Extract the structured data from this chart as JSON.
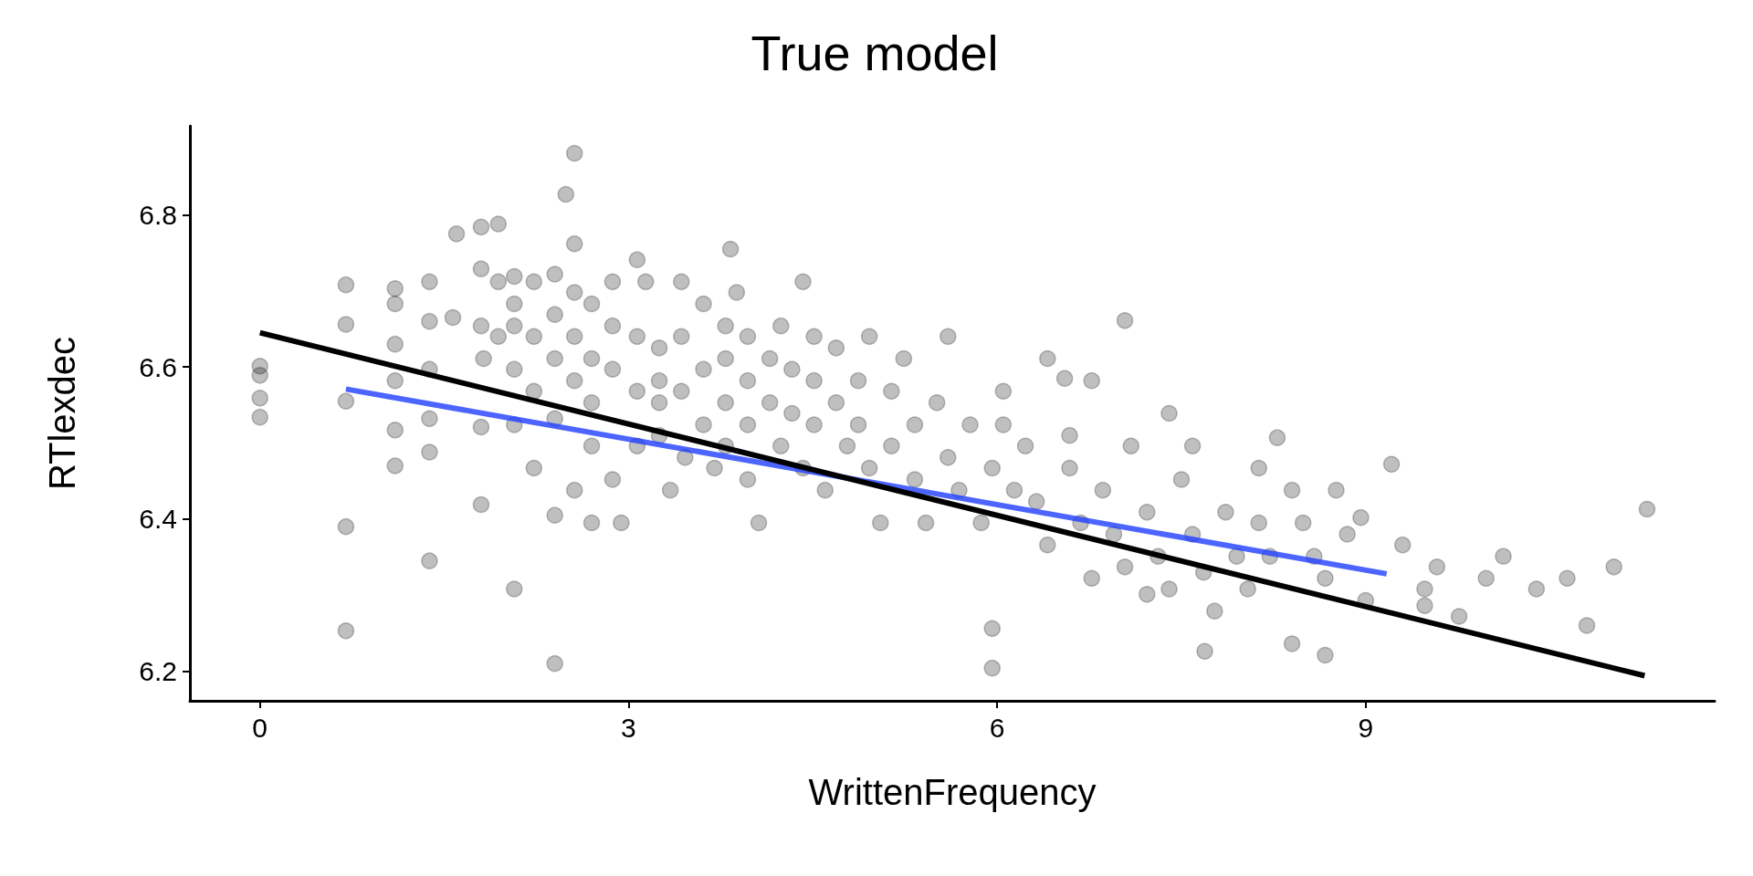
{
  "chart_data": {
    "type": "scatter",
    "title": "True model",
    "xlabel": "WrittenFrequency",
    "ylabel": "RTlexdec",
    "xlim": [
      -0.57,
      11.84
    ],
    "ylim": [
      6.161,
      6.917
    ],
    "xticks": [
      0,
      3,
      6,
      9
    ],
    "yticks": [
      6.2,
      6.4,
      6.6,
      6.8
    ],
    "grid": false,
    "marker": "circle",
    "series": [
      {
        "color": "#000000",
        "x": [
          0,
          0,
          0,
          0,
          0.7,
          0.7,
          0.7,
          0.7,
          0.7,
          1.1,
          1.1,
          1.1,
          1.1,
          1.1,
          1.1,
          1.38,
          1.38,
          1.38,
          1.38,
          1.38,
          1.38,
          1.6,
          1.57,
          1.8,
          1.8,
          1.8,
          1.8,
          1.8,
          1.82,
          1.94,
          1.94,
          1.94,
          2.07,
          2.07,
          2.07,
          2.07,
          2.07,
          2.07,
          2.23,
          2.23,
          2.23,
          2.23,
          2.4,
          2.4,
          2.4,
          2.4,
          2.4,
          2.4,
          2.49,
          2.56,
          2.56,
          2.56,
          2.56,
          2.56,
          2.56,
          2.7,
          2.7,
          2.7,
          2.7,
          2.7,
          2.87,
          2.87,
          2.87,
          2.87,
          2.94,
          3.07,
          3.07,
          3.07,
          3.07,
          3.14,
          3.25,
          3.25,
          3.25,
          3.25,
          3.34,
          3.43,
          3.43,
          3.43,
          3.46,
          3.61,
          3.61,
          3.61,
          3.7,
          3.79,
          3.79,
          3.79,
          3.79,
          3.83,
          3.88,
          3.97,
          3.97,
          3.97,
          3.97,
          4.06,
          4.15,
          4.15,
          4.24,
          4.24,
          4.33,
          4.33,
          4.42,
          4.42,
          4.51,
          4.51,
          4.51,
          4.6,
          4.69,
          4.69,
          4.78,
          4.87,
          4.87,
          4.96,
          4.96,
          5.05,
          5.14,
          5.14,
          5.24,
          5.33,
          5.33,
          5.42,
          5.51,
          5.6,
          5.6,
          5.69,
          5.78,
          5.87,
          5.96,
          5.96,
          5.96,
          6.05,
          6.05,
          6.14,
          6.23,
          6.32,
          6.41,
          6.41,
          6.55,
          6.59,
          6.59,
          6.68,
          6.77,
          6.77,
          6.86,
          6.95,
          7.04,
          7.04,
          7.09,
          7.22,
          7.22,
          7.31,
          7.4,
          7.4,
          7.5,
          7.59,
          7.59,
          7.68,
          7.69,
          7.77,
          7.86,
          7.95,
          8.04,
          8.13,
          8.13,
          8.22,
          8.28,
          8.4,
          8.4,
          8.49,
          8.58,
          8.67,
          8.67,
          8.76,
          8.85,
          8.96,
          9.0,
          9.21,
          9.3,
          9.48,
          9.48,
          9.58,
          9.76,
          9.98,
          10.12,
          10.39,
          10.64,
          10.8,
          11.02,
          11.29
        ],
        "values": [
          6.601,
          6.589,
          6.559,
          6.534,
          6.708,
          6.656,
          6.555,
          6.39,
          6.253,
          6.703,
          6.683,
          6.63,
          6.582,
          6.517,
          6.47,
          6.712,
          6.66,
          6.597,
          6.532,
          6.488,
          6.345,
          6.775,
          6.665,
          6.784,
          6.729,
          6.654,
          6.521,
          6.419,
          6.611,
          6.788,
          6.712,
          6.64,
          6.719,
          6.683,
          6.654,
          6.597,
          6.524,
          6.308,
          6.712,
          6.64,
          6.568,
          6.467,
          6.722,
          6.669,
          6.611,
          6.532,
          6.405,
          6.21,
          6.827,
          6.881,
          6.762,
          6.698,
          6.64,
          6.582,
          6.438,
          6.683,
          6.611,
          6.553,
          6.496,
          6.395,
          6.712,
          6.654,
          6.597,
          6.452,
          6.395,
          6.741,
          6.64,
          6.568,
          6.496,
          6.712,
          6.625,
          6.582,
          6.553,
          6.51,
          6.438,
          6.712,
          6.64,
          6.568,
          6.481,
          6.683,
          6.597,
          6.524,
          6.467,
          6.654,
          6.611,
          6.553,
          6.496,
          6.755,
          6.698,
          6.64,
          6.582,
          6.524,
          6.452,
          6.395,
          6.611,
          6.553,
          6.496,
          6.654,
          6.597,
          6.539,
          6.467,
          6.712,
          6.64,
          6.582,
          6.524,
          6.438,
          6.625,
          6.553,
          6.496,
          6.582,
          6.524,
          6.467,
          6.64,
          6.395,
          6.568,
          6.496,
          6.611,
          6.524,
          6.452,
          6.395,
          6.553,
          6.481,
          6.64,
          6.438,
          6.524,
          6.395,
          6.467,
          6.204,
          6.256,
          6.524,
          6.568,
          6.438,
          6.496,
          6.423,
          6.366,
          6.611,
          6.585,
          6.467,
          6.51,
          6.395,
          6.322,
          6.582,
          6.438,
          6.38,
          6.337,
          6.661,
          6.496,
          6.409,
          6.301,
          6.351,
          6.308,
          6.539,
          6.452,
          6.38,
          6.496,
          6.33,
          6.226,
          6.279,
          6.409,
          6.351,
          6.308,
          6.395,
          6.467,
          6.351,
          6.507,
          6.438,
          6.236,
          6.395,
          6.351,
          6.322,
          6.221,
          6.438,
          6.38,
          6.402,
          6.293,
          6.472,
          6.366,
          6.308,
          6.286,
          6.337,
          6.272,
          6.322,
          6.351,
          6.308,
          6.322,
          6.26,
          6.337,
          6.413
        ]
      },
      {
        "type": "line",
        "marker": "none",
        "color": "#1f3fff",
        "x": [
          0.7,
          9.17
        ],
        "values": [
          6.571,
          6.328
        ]
      },
      {
        "type": "line",
        "marker": "none",
        "color": "#000000",
        "x": [
          0,
          11.27
        ],
        "values": [
          6.645,
          6.194
        ]
      }
    ]
  }
}
